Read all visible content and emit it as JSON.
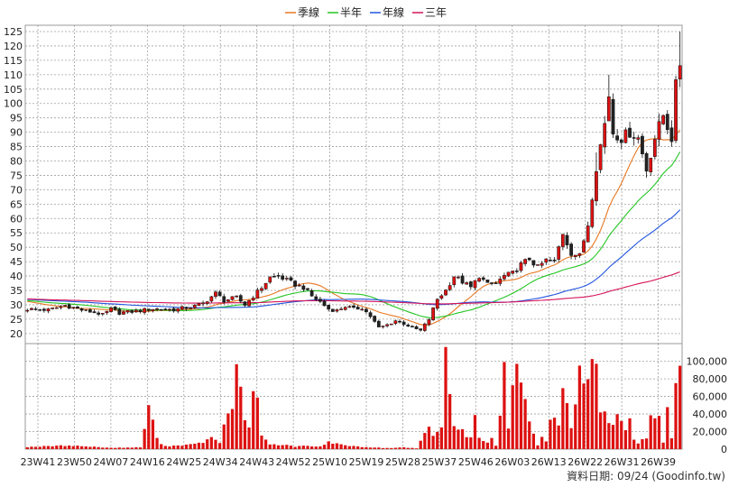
{
  "chart_data": {
    "type": "candlestick",
    "legend": [
      {
        "name": "季線",
        "color": "#e87722"
      },
      {
        "name": "半年",
        "color": "#22c522"
      },
      {
        "name": "年線",
        "color": "#2255dd"
      },
      {
        "name": "三年",
        "color": "#d4145a"
      }
    ],
    "colors": {
      "up": "#dd1111",
      "down": "#111111",
      "volume": "#dd1111",
      "grid": "#a0a0a0"
    },
    "price_axis": {
      "min": 20,
      "max": 125,
      "step": 5,
      "ticks": [
        20,
        25,
        30,
        35,
        40,
        45,
        50,
        55,
        60,
        65,
        70,
        75,
        80,
        85,
        90,
        95,
        100,
        105,
        110,
        115,
        120,
        125
      ]
    },
    "volume_axis": {
      "min": 0,
      "max": 100000,
      "ticks": [
        0,
        20000,
        40000,
        60000,
        80000,
        100000
      ],
      "tick_labels": [
        "0",
        "20,000",
        "40,000",
        "60,000",
        "80,000",
        "100,000"
      ]
    },
    "x_labels": [
      "23W41",
      "23W50",
      "24W07",
      "24W16",
      "24W25",
      "24W34",
      "24W43",
      "24W52",
      "25W10",
      "25W19",
      "25W28",
      "25W37",
      "25W46",
      "26W03",
      "26W13",
      "26W22",
      "26W31",
      "26W39"
    ],
    "weeks": 157,
    "footer": "資料日期: 09/24  (Goodinfo.tw)",
    "key_closes": [
      [
        0,
        28.5
      ],
      [
        5,
        28.2
      ],
      [
        9,
        29.8
      ],
      [
        13,
        28.2
      ],
      [
        17,
        27.0
      ],
      [
        18,
        26.5
      ],
      [
        20,
        28.5
      ],
      [
        22,
        27.2
      ],
      [
        26,
        27.8
      ],
      [
        30,
        28.6
      ],
      [
        35,
        28.3
      ],
      [
        40,
        29.5
      ],
      [
        42,
        30.5
      ],
      [
        45,
        34.0
      ],
      [
        47,
        31.5
      ],
      [
        50,
        32.5
      ],
      [
        52,
        30.0
      ],
      [
        54,
        33.0
      ],
      [
        56,
        36.0
      ],
      [
        58,
        39.5
      ],
      [
        60,
        40.0
      ],
      [
        62,
        38.5
      ],
      [
        64,
        37.0
      ],
      [
        66,
        36.0
      ],
      [
        68,
        33.0
      ],
      [
        70,
        31.0
      ],
      [
        72,
        28.5
      ],
      [
        74,
        28.0
      ],
      [
        76,
        29.5
      ],
      [
        78,
        28.5
      ],
      [
        80,
        29.0
      ],
      [
        82,
        26.0
      ],
      [
        84,
        22.0
      ],
      [
        86,
        23.0
      ],
      [
        88,
        24.5
      ],
      [
        90,
        23.5
      ],
      [
        92,
        22.0
      ],
      [
        94,
        21.0
      ],
      [
        96,
        25.0
      ],
      [
        98,
        32.0
      ],
      [
        100,
        35.0
      ],
      [
        102,
        40.0
      ],
      [
        104,
        38.0
      ],
      [
        106,
        36.0
      ],
      [
        108,
        40.0
      ],
      [
        110,
        37.0
      ],
      [
        112,
        37.5
      ],
      [
        114,
        40.0
      ],
      [
        116,
        41.0
      ],
      [
        118,
        44.0
      ],
      [
        120,
        46.0
      ],
      [
        122,
        43.0
      ],
      [
        124,
        45.5
      ],
      [
        126,
        45.0
      ],
      [
        128,
        55.0
      ],
      [
        130,
        48.0
      ],
      [
        132,
        47.0
      ],
      [
        134,
        58.0
      ],
      [
        136,
        78.0
      ],
      [
        138,
        93.0
      ],
      [
        139,
        103.0
      ],
      [
        140,
        90.0
      ],
      [
        142,
        88.0
      ],
      [
        144,
        90.0
      ],
      [
        146,
        88.0
      ],
      [
        148,
        77.0
      ],
      [
        150,
        88.0
      ],
      [
        152,
        96.0
      ],
      [
        154,
        88.0
      ],
      [
        155,
        106.0
      ],
      [
        156,
        114.0
      ]
    ],
    "spike_highs": [
      [
        139,
        110
      ],
      [
        136,
        83
      ],
      [
        156,
        125
      ]
    ],
    "key_volumes": [
      [
        0,
        2500
      ],
      [
        10,
        4200
      ],
      [
        20,
        1500
      ],
      [
        27,
        2000
      ],
      [
        29,
        47000
      ],
      [
        31,
        14000
      ],
      [
        32,
        5000
      ],
      [
        34,
        3500
      ],
      [
        40,
        5500
      ],
      [
        42,
        8000
      ],
      [
        44,
        12500
      ],
      [
        46,
        7500
      ],
      [
        48,
        42000
      ],
      [
        49,
        45000
      ],
      [
        50,
        94000
      ],
      [
        51,
        77000
      ],
      [
        52,
        31000
      ],
      [
        53,
        25000
      ],
      [
        54,
        74000
      ],
      [
        55,
        52000
      ],
      [
        56,
        14000
      ],
      [
        58,
        6000
      ],
      [
        60,
        4000
      ],
      [
        62,
        5000
      ],
      [
        64,
        2500
      ],
      [
        66,
        4000
      ],
      [
        70,
        3000
      ],
      [
        72,
        8000
      ],
      [
        75,
        5000
      ],
      [
        80,
        2500
      ],
      [
        86,
        1200
      ],
      [
        90,
        2000
      ],
      [
        93,
        1000
      ],
      [
        95,
        16000
      ],
      [
        96,
        24000
      ],
      [
        97,
        17000
      ],
      [
        98,
        19000
      ],
      [
        99,
        22000
      ],
      [
        100,
        112000
      ],
      [
        101,
        66000
      ],
      [
        102,
        24000
      ],
      [
        103,
        23000
      ],
      [
        104,
        24000
      ],
      [
        105,
        16000
      ],
      [
        106,
        15000
      ],
      [
        107,
        34000
      ],
      [
        108,
        12000
      ],
      [
        109,
        10000
      ],
      [
        110,
        7000
      ],
      [
        111,
        12000
      ],
      [
        112,
        4000
      ],
      [
        113,
        36000
      ],
      [
        114,
        91000
      ],
      [
        115,
        21000
      ],
      [
        116,
        67000
      ],
      [
        117,
        89000
      ],
      [
        118,
        81000
      ],
      [
        119,
        59000
      ],
      [
        120,
        33000
      ],
      [
        121,
        18000
      ],
      [
        122,
        4000
      ],
      [
        123,
        13000
      ],
      [
        124,
        10000
      ],
      [
        125,
        38000
      ],
      [
        126,
        41000
      ],
      [
        127,
        26000
      ],
      [
        128,
        80000
      ],
      [
        129,
        47000
      ],
      [
        130,
        28000
      ],
      [
        131,
        45000
      ],
      [
        132,
        95000
      ],
      [
        133,
        84000
      ],
      [
        134,
        75000
      ],
      [
        135,
        112000
      ],
      [
        136,
        111000
      ],
      [
        137,
        47000
      ],
      [
        138,
        39000
      ],
      [
        139,
        30000
      ],
      [
        140,
        29000
      ],
      [
        141,
        39000
      ],
      [
        142,
        30000
      ],
      [
        143,
        23000
      ],
      [
        144,
        31000
      ],
      [
        145,
        12000
      ],
      [
        146,
        6000
      ],
      [
        147,
        10000
      ],
      [
        148,
        11000
      ],
      [
        149,
        34000
      ],
      [
        150,
        31000
      ],
      [
        151,
        33000
      ],
      [
        152,
        7000
      ],
      [
        153,
        45000
      ],
      [
        154,
        11000
      ],
      [
        155,
        71000
      ],
      [
        156,
        84000
      ]
    ]
  }
}
